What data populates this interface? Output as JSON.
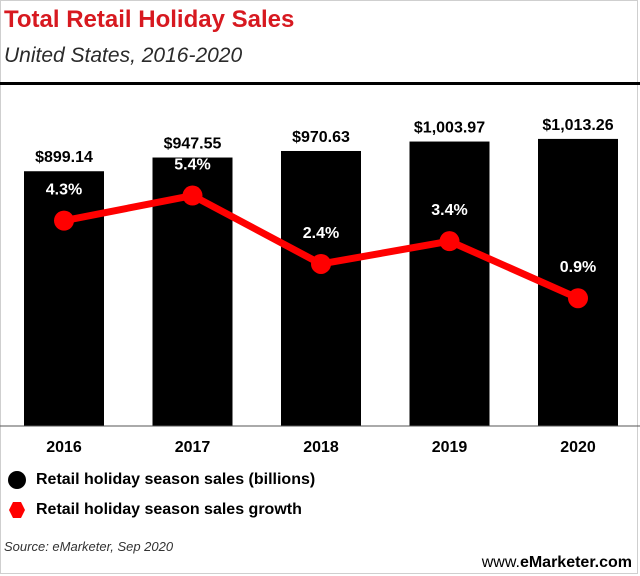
{
  "header": {
    "title": "Total Retail Holiday Sales",
    "subtitle": "United States, 2016-2020"
  },
  "colors": {
    "title": "#d71920",
    "bars": "#000000",
    "growth_line": "#ff0000",
    "text": "#000000"
  },
  "chart_data": {
    "type": "bar",
    "title": "Total Retail Holiday Sales",
    "subtitle": "United States, 2016-2020",
    "categories": [
      "2016",
      "2017",
      "2018",
      "2019",
      "2020"
    ],
    "series": [
      {
        "name": "Retail holiday season sales (billions)",
        "type": "bar",
        "values": [
          899.14,
          947.55,
          970.63,
          1003.97,
          1013.26
        ],
        "labels": [
          "$899.14",
          "$947.55",
          "$970.63",
          "$1,003.97",
          "$1,013.26"
        ],
        "color": "#000000"
      },
      {
        "name": "Retail holiday season sales growth",
        "type": "line",
        "values": [
          4.3,
          5.4,
          2.4,
          3.4,
          0.9
        ],
        "labels": [
          "4.3%",
          "5.4%",
          "2.4%",
          "3.4%",
          "0.9%"
        ],
        "color": "#ff0000"
      }
    ],
    "xlabel": "",
    "ylabel": "",
    "ylim": [
      0,
      1200
    ],
    "y2lim": [
      -4.7,
      10.2
    ],
    "grid": false,
    "legend": "bottom-left"
  },
  "legend": {
    "items": [
      {
        "label": "Retail holiday season sales (billions)",
        "marker": "circle",
        "color": "#000000"
      },
      {
        "label": "Retail holiday season sales growth",
        "marker": "hexagon",
        "color": "#ff0000"
      }
    ]
  },
  "footer": {
    "source": "Source: eMarketer, Sep 2020",
    "brand_prefix": "www.",
    "brand_name": "eMarketer",
    "brand_suffix": ".com"
  }
}
